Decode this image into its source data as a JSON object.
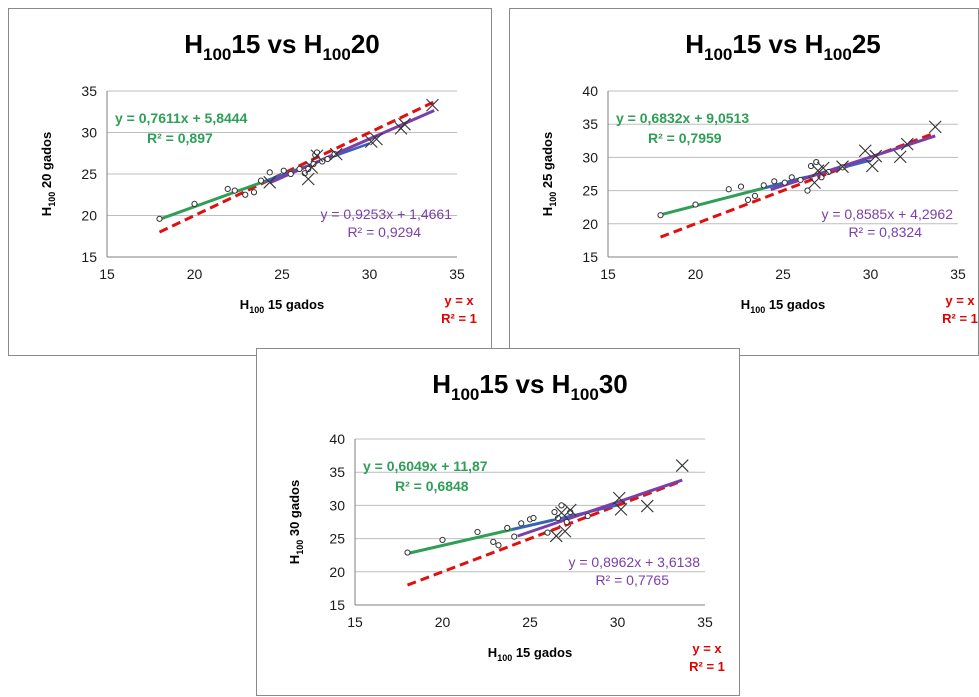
{
  "colors": {
    "green": "#2f9e57",
    "purple": "#7b3fa8",
    "blue": "#3a5fbf",
    "red": "#e01010",
    "grid": "#bdbdbd"
  },
  "chart_data": [
    {
      "type": "scatter",
      "title": {
        "prefix": "H",
        "sub1": "100",
        "mid": "15 vs H",
        "sub2": "100",
        "suffix": "20"
      },
      "xlabel": {
        "prefix": "H",
        "sub": "100",
        "suffix": " 15 gados"
      },
      "ylabel": {
        "prefix": "H",
        "sub": "100",
        "suffix": " 20 gados"
      },
      "xlim": [
        15,
        35
      ],
      "ylim": [
        15,
        35
      ],
      "xticks": [
        15,
        20,
        25,
        30,
        35
      ],
      "yticks": [
        15,
        20,
        25,
        30,
        35
      ],
      "eq_green": {
        "line1": "y = 0,7611x + 5,8444",
        "line2": "R² = 0,897"
      },
      "eq_purple": {
        "line1": "y = 0,9253x + 1,4661",
        "line2": "R² = 0,9294"
      },
      "ref_label": {
        "line1": "y = x",
        "line2": "R² = 1"
      },
      "fit_green": {
        "slope": 0.7611,
        "intercept": 5.8444
      },
      "fit_purple": {
        "slope": 0.9253,
        "intercept": 1.4661
      },
      "circles": [
        [
          18.0,
          19.6
        ],
        [
          20.0,
          21.4
        ],
        [
          21.9,
          23.2
        ],
        [
          22.3,
          23.0
        ],
        [
          22.9,
          22.5
        ],
        [
          23.4,
          22.8
        ],
        [
          23.8,
          24.2
        ],
        [
          24.3,
          25.2
        ],
        [
          25.1,
          25.4
        ],
        [
          25.5,
          25.0
        ],
        [
          26.0,
          25.6
        ],
        [
          26.3,
          25.1
        ],
        [
          26.5,
          25.6
        ],
        [
          26.8,
          26.2
        ],
        [
          26.9,
          27.3
        ],
        [
          27.0,
          27.6
        ],
        [
          27.3,
          26.5
        ],
        [
          27.6,
          26.8
        ],
        [
          28.0,
          27.4
        ]
      ],
      "crosses": [
        [
          24.3,
          24.0
        ],
        [
          26.5,
          24.4
        ],
        [
          26.7,
          25.8
        ],
        [
          27.0,
          27.2
        ],
        [
          28.1,
          27.4
        ],
        [
          30.1,
          28.9
        ],
        [
          30.4,
          29.2
        ],
        [
          31.8,
          30.5
        ],
        [
          32.0,
          31.0
        ],
        [
          33.6,
          33.3
        ]
      ]
    },
    {
      "type": "scatter",
      "title": {
        "prefix": "H",
        "sub1": "100",
        "mid": "15 vs H",
        "sub2": "100",
        "suffix": "25"
      },
      "xlabel": {
        "prefix": "H",
        "sub": "100",
        "suffix": " 15 gados"
      },
      "ylabel": {
        "prefix": "H",
        "sub": "100",
        "suffix": " 25 gados"
      },
      "xlim": [
        15,
        35
      ],
      "ylim": [
        15,
        40
      ],
      "xticks": [
        15,
        20,
        25,
        30,
        35
      ],
      "yticks": [
        15,
        20,
        25,
        30,
        35,
        40
      ],
      "eq_green": {
        "line1": "y = 0,6832x + 9,0513",
        "line2": "R² = 0,7959"
      },
      "eq_purple": {
        "line1": "y = 0,8585x + 4,2962",
        "line2": "R² = 0,8324"
      },
      "ref_label": {
        "line1": "y = x",
        "line2": "R² = 1"
      },
      "fit_green": {
        "slope": 0.6832,
        "intercept": 9.0513
      },
      "fit_purple": {
        "slope": 0.8585,
        "intercept": 4.2962
      },
      "circles": [
        [
          18.0,
          21.3
        ],
        [
          20.0,
          22.9
        ],
        [
          21.9,
          25.2
        ],
        [
          22.6,
          25.6
        ],
        [
          23.0,
          23.6
        ],
        [
          23.4,
          24.2
        ],
        [
          23.9,
          25.8
        ],
        [
          24.5,
          26.4
        ],
        [
          25.1,
          26.2
        ],
        [
          25.5,
          27.0
        ],
        [
          26.0,
          26.6
        ],
        [
          26.4,
          25.0
        ],
        [
          26.6,
          28.7
        ],
        [
          26.9,
          29.3
        ],
        [
          27.2,
          27.0
        ],
        [
          27.6,
          27.8
        ],
        [
          28.4,
          28.5
        ]
      ],
      "crosses": [
        [
          26.8,
          26.2
        ],
        [
          27.0,
          28.0
        ],
        [
          27.3,
          28.4
        ],
        [
          28.4,
          28.6
        ],
        [
          29.7,
          31.0
        ],
        [
          30.1,
          28.7
        ],
        [
          30.3,
          30.2
        ],
        [
          31.7,
          30.1
        ],
        [
          32.1,
          32.0
        ],
        [
          33.7,
          34.6
        ]
      ]
    },
    {
      "type": "scatter",
      "title": {
        "prefix": "H",
        "sub1": "100",
        "mid": "15 vs H",
        "sub2": "100",
        "suffix": "30"
      },
      "xlabel": {
        "prefix": "H",
        "sub": "100",
        "suffix": " 15 gados"
      },
      "ylabel": {
        "prefix": "H",
        "sub": "100",
        "suffix": " 30 gados"
      },
      "xlim": [
        15,
        35
      ],
      "ylim": [
        15,
        40
      ],
      "xticks": [
        15,
        20,
        25,
        30,
        35
      ],
      "yticks": [
        15,
        20,
        25,
        30,
        35,
        40
      ],
      "eq_green": {
        "line1": "y = 0,6049x + 11,87",
        "line2": "R² = 0,6848"
      },
      "eq_purple": {
        "line1": "y = 0,8962x + 3,6138",
        "line2": "R² = 0,7765"
      },
      "ref_label": {
        "line1": "y = x",
        "line2": "R² = 1"
      },
      "fit_green": {
        "slope": 0.6049,
        "intercept": 11.87
      },
      "fit_purple": {
        "slope": 0.8962,
        "intercept": 3.6138
      },
      "circles": [
        [
          18.0,
          22.9
        ],
        [
          20.0,
          24.8
        ],
        [
          22.0,
          26.0
        ],
        [
          22.9,
          24.5
        ],
        [
          23.2,
          24.0
        ],
        [
          23.7,
          26.6
        ],
        [
          24.1,
          25.3
        ],
        [
          24.5,
          27.3
        ],
        [
          25.0,
          27.9
        ],
        [
          25.2,
          28.1
        ],
        [
          26.0,
          25.9
        ],
        [
          26.4,
          29.0
        ],
        [
          26.6,
          28.1
        ],
        [
          26.8,
          30.0
        ],
        [
          27.1,
          27.5
        ],
        [
          27.3,
          29.0
        ],
        [
          28.3,
          28.4
        ]
      ],
      "crosses": [
        [
          26.5,
          25.4
        ],
        [
          26.8,
          28.9
        ],
        [
          27.0,
          26.1
        ],
        [
          27.3,
          29.3
        ],
        [
          30.1,
          31.1
        ],
        [
          30.2,
          29.4
        ],
        [
          31.7,
          29.9
        ],
        [
          33.7,
          36.0
        ]
      ]
    }
  ]
}
